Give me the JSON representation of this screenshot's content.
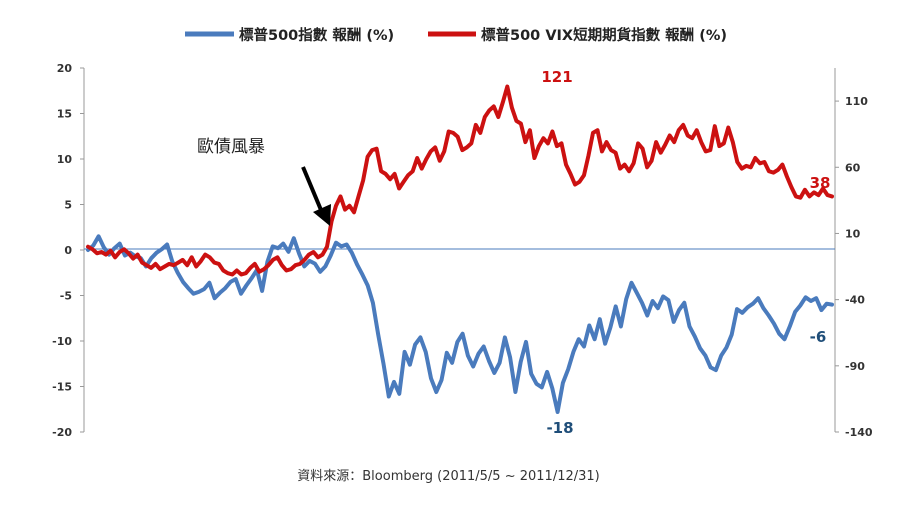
{
  "chart_data": {
    "type": "line",
    "legend": {
      "placement": "top-center",
      "entries": [
        "標普500指數 報酬 (%)",
        "標普500 VIX短期期貨指數 報酬 (%)"
      ]
    },
    "y_left": {
      "range": [
        -20,
        20
      ],
      "ticks": [
        "20",
        "15",
        "10",
        "5",
        "0",
        "-5",
        "-10",
        "-15",
        "-20"
      ]
    },
    "y_right": {
      "range": [
        -140,
        135
      ],
      "ticks": [
        "110",
        "60",
        "10",
        "-40",
        "-90",
        "-140"
      ]
    },
    "grid": false,
    "series": [
      {
        "name": "標普500指數 報酬 (%)",
        "axis": "left",
        "color": "#4a7bbd",
        "values": [
          0,
          0.5,
          1.5,
          0.3,
          -0.5,
          0.2,
          0.7,
          -0.6,
          -0.3,
          -0.7,
          -0.9,
          -1.8,
          -0.9,
          -0.3,
          0.1,
          0.6,
          -1.3,
          -2.5,
          -3.5,
          -4.2,
          -4.8,
          -4.6,
          -4.3,
          -3.6,
          -5.3,
          -4.7,
          -4.2,
          -3.5,
          -3.2,
          -4.8,
          -3.9,
          -3.1,
          -2.2,
          -4.5,
          -1.3,
          0.4,
          0.2,
          0.7,
          -0.2,
          1.3,
          -0.4,
          -1.8,
          -1.2,
          -1.5,
          -2.4,
          -1.8,
          -0.6,
          0.8,
          0.4,
          0.6,
          -0.3,
          -1.6,
          -2.7,
          -3.9,
          -5.8,
          -9.3,
          -12.5,
          -16.1,
          -14.5,
          -15.8,
          -11.2,
          -12.6,
          -10.4,
          -9.6,
          -11.2,
          -14.1,
          -15.6,
          -14.3,
          -11.3,
          -12.4,
          -10.1,
          -9.2,
          -11.6,
          -12.8,
          -11.4,
          -10.6,
          -12.2,
          -13.5,
          -12.4,
          -9.6,
          -11.8,
          -15.6,
          -12.3,
          -10.1,
          -13.6,
          -14.7,
          -15.1,
          -13.4,
          -15.2,
          -17.8,
          -14.6,
          -13.1,
          -11.2,
          -9.8,
          -10.6,
          -8.3,
          -9.8,
          -7.6,
          -10.3,
          -8.5,
          -6.2,
          -8.4,
          -5.4,
          -3.6,
          -4.7,
          -5.8,
          -7.2,
          -5.6,
          -6.4,
          -5.1,
          -5.5,
          -7.9,
          -6.6,
          -5.8,
          -8.4,
          -9.5,
          -10.8,
          -11.6,
          -12.9,
          -13.2,
          -11.6,
          -10.7,
          -9.3,
          -6.5,
          -6.9,
          -6.3,
          -5.9,
          -5.3,
          -6.4,
          -7.2,
          -8.1,
          -9.2,
          -9.8,
          -8.4,
          -6.8,
          -6.1,
          -5.2,
          -5.6,
          -5.3,
          -6.6,
          -5.9,
          -6
        ]
      },
      {
        "name": "標普500 VIX短期期貨指數 報酬 (%)",
        "axis": "right",
        "color": "#cc1111",
        "values": [
          0,
          -2,
          -5,
          -4,
          -6,
          -3,
          -8,
          -4,
          -2,
          -5,
          -9,
          -6,
          -12,
          -14,
          -16,
          -13,
          -17,
          -15,
          -13,
          -14,
          -12,
          -10,
          -14,
          -8,
          -15,
          -11,
          -6,
          -8,
          -12,
          -13,
          -18,
          -20,
          -21,
          -18,
          -21,
          -20,
          -16,
          -13,
          -19,
          -17,
          -14,
          -10,
          -8,
          -14,
          -18,
          -17,
          -14,
          -13,
          -10,
          -6,
          -4,
          -8,
          -6,
          0,
          19,
          31,
          38,
          28,
          31,
          26,
          38,
          50,
          68,
          73,
          74,
          57,
          55,
          51,
          55,
          44,
          49,
          54,
          57,
          67,
          59,
          66,
          72,
          75,
          65,
          72,
          87,
          86,
          83,
          73,
          75,
          78,
          92,
          86,
          98,
          103,
          106,
          98,
          109,
          121,
          105,
          95,
          93,
          79,
          88,
          67,
          76,
          82,
          78,
          87,
          76,
          78,
          62,
          55,
          47,
          49,
          54,
          69,
          86,
          88,
          72,
          79,
          73,
          71,
          59,
          62,
          57,
          63,
          78,
          74,
          60,
          65,
          79,
          71,
          77,
          84,
          79,
          88,
          92,
          84,
          82,
          88,
          79,
          72,
          73,
          91,
          76,
          78,
          90,
          79,
          64,
          59,
          61,
          60,
          67,
          63,
          64,
          57,
          56,
          58,
          62,
          53,
          45,
          38,
          37,
          43,
          38,
          41,
          39,
          44,
          39,
          38
        ],
        "value_labels": []
      }
    ],
    "annotations": [
      {
        "text": "歐債風暴",
        "type": "arrow"
      },
      {
        "text": "121",
        "series": 1
      },
      {
        "text": "38",
        "series": 1
      },
      {
        "text": "-18",
        "series": 0
      },
      {
        "text": "-6",
        "series": 0
      }
    ],
    "source": "資料來源：Bloomberg (2011/5/5 ~ 2011/12/31)"
  }
}
